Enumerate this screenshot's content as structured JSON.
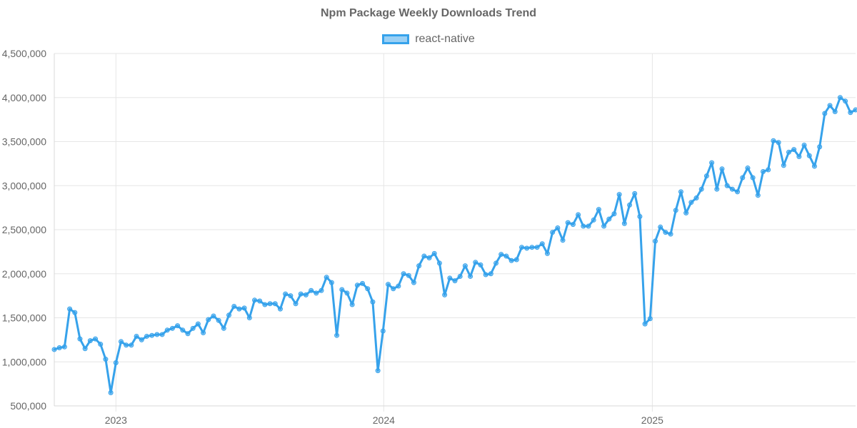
{
  "chart_data": {
    "type": "line",
    "title": "Npm Package Weekly Downloads Trend",
    "xlabel": "",
    "ylabel": "",
    "ylim": [
      500000,
      4500000
    ],
    "xlim": [
      "2022-10-09",
      "2025-10-05"
    ],
    "y_ticks": [
      500000,
      1000000,
      1500000,
      2000000,
      2500000,
      3000000,
      3500000,
      4000000,
      4500000
    ],
    "y_tick_labels": [
      "500,000",
      "1,000,000",
      "1,500,000",
      "2,000,000",
      "2,500,000",
      "3,000,000",
      "3,500,000",
      "4,000,000",
      "4,500,000"
    ],
    "x_ticks": [
      "2023-01-01",
      "2024-01-01",
      "2025-01-01"
    ],
    "x_tick_labels": [
      "2023",
      "2024",
      "2025"
    ],
    "grid": true,
    "legend": "top",
    "color": "#36a2eb",
    "series": [
      {
        "name": "react-native",
        "points": [
          [
            "2022-10-09",
            1140000
          ],
          [
            "2022-10-16",
            1160000
          ],
          [
            "2022-10-23",
            1170000
          ],
          [
            "2022-10-30",
            1600000
          ],
          [
            "2022-11-06",
            1560000
          ],
          [
            "2022-11-13",
            1260000
          ],
          [
            "2022-11-20",
            1150000
          ],
          [
            "2022-11-27",
            1240000
          ],
          [
            "2022-12-04",
            1260000
          ],
          [
            "2022-12-11",
            1200000
          ],
          [
            "2022-12-18",
            1030000
          ],
          [
            "2022-12-25",
            650000
          ],
          [
            "2023-01-01",
            990000
          ],
          [
            "2023-01-08",
            1230000
          ],
          [
            "2023-01-15",
            1190000
          ],
          [
            "2023-01-22",
            1190000
          ],
          [
            "2023-01-29",
            1290000
          ],
          [
            "2023-02-05",
            1250000
          ],
          [
            "2023-02-12",
            1290000
          ],
          [
            "2023-02-19",
            1300000
          ],
          [
            "2023-02-26",
            1310000
          ],
          [
            "2023-03-05",
            1310000
          ],
          [
            "2023-03-12",
            1360000
          ],
          [
            "2023-03-19",
            1380000
          ],
          [
            "2023-03-26",
            1410000
          ],
          [
            "2023-04-02",
            1360000
          ],
          [
            "2023-04-09",
            1320000
          ],
          [
            "2023-04-16",
            1380000
          ],
          [
            "2023-04-23",
            1430000
          ],
          [
            "2023-04-30",
            1330000
          ],
          [
            "2023-05-07",
            1480000
          ],
          [
            "2023-05-14",
            1520000
          ],
          [
            "2023-05-21",
            1470000
          ],
          [
            "2023-05-28",
            1380000
          ],
          [
            "2023-06-04",
            1530000
          ],
          [
            "2023-06-11",
            1630000
          ],
          [
            "2023-06-18",
            1600000
          ],
          [
            "2023-06-25",
            1610000
          ],
          [
            "2023-07-02",
            1500000
          ],
          [
            "2023-07-09",
            1700000
          ],
          [
            "2023-07-16",
            1690000
          ],
          [
            "2023-07-23",
            1650000
          ],
          [
            "2023-07-30",
            1660000
          ],
          [
            "2023-08-06",
            1660000
          ],
          [
            "2023-08-13",
            1600000
          ],
          [
            "2023-08-20",
            1770000
          ],
          [
            "2023-08-27",
            1750000
          ],
          [
            "2023-09-03",
            1660000
          ],
          [
            "2023-09-10",
            1770000
          ],
          [
            "2023-09-17",
            1760000
          ],
          [
            "2023-09-24",
            1810000
          ],
          [
            "2023-10-01",
            1780000
          ],
          [
            "2023-10-08",
            1810000
          ],
          [
            "2023-10-15",
            1960000
          ],
          [
            "2023-10-22",
            1900000
          ],
          [
            "2023-10-29",
            1300000
          ],
          [
            "2023-11-05",
            1820000
          ],
          [
            "2023-11-12",
            1780000
          ],
          [
            "2023-11-19",
            1650000
          ],
          [
            "2023-11-26",
            1870000
          ],
          [
            "2023-12-03",
            1890000
          ],
          [
            "2023-12-10",
            1830000
          ],
          [
            "2023-12-17",
            1680000
          ],
          [
            "2023-12-24",
            900000
          ],
          [
            "2023-12-31",
            1350000
          ],
          [
            "2024-01-07",
            1880000
          ],
          [
            "2024-01-14",
            1830000
          ],
          [
            "2024-01-21",
            1860000
          ],
          [
            "2024-01-28",
            2000000
          ],
          [
            "2024-02-04",
            1980000
          ],
          [
            "2024-02-11",
            1900000
          ],
          [
            "2024-02-18",
            2090000
          ],
          [
            "2024-02-25",
            2200000
          ],
          [
            "2024-03-03",
            2180000
          ],
          [
            "2024-03-10",
            2230000
          ],
          [
            "2024-03-17",
            2120000
          ],
          [
            "2024-03-24",
            1760000
          ],
          [
            "2024-03-31",
            1950000
          ],
          [
            "2024-04-07",
            1920000
          ],
          [
            "2024-04-14",
            1970000
          ],
          [
            "2024-04-21",
            2090000
          ],
          [
            "2024-04-28",
            1970000
          ],
          [
            "2024-05-05",
            2130000
          ],
          [
            "2024-05-12",
            2100000
          ],
          [
            "2024-05-19",
            1990000
          ],
          [
            "2024-05-26",
            2000000
          ],
          [
            "2024-06-02",
            2120000
          ],
          [
            "2024-06-09",
            2220000
          ],
          [
            "2024-06-16",
            2200000
          ],
          [
            "2024-06-23",
            2150000
          ],
          [
            "2024-06-30",
            2160000
          ],
          [
            "2024-07-07",
            2300000
          ],
          [
            "2024-07-14",
            2290000
          ],
          [
            "2024-07-21",
            2300000
          ],
          [
            "2024-07-28",
            2300000
          ],
          [
            "2024-08-04",
            2340000
          ],
          [
            "2024-08-11",
            2230000
          ],
          [
            "2024-08-18",
            2470000
          ],
          [
            "2024-08-25",
            2520000
          ],
          [
            "2024-09-01",
            2380000
          ],
          [
            "2024-09-08",
            2580000
          ],
          [
            "2024-09-15",
            2560000
          ],
          [
            "2024-09-22",
            2670000
          ],
          [
            "2024-09-29",
            2540000
          ],
          [
            "2024-10-06",
            2540000
          ],
          [
            "2024-10-13",
            2610000
          ],
          [
            "2024-10-20",
            2730000
          ],
          [
            "2024-10-27",
            2540000
          ],
          [
            "2024-11-03",
            2620000
          ],
          [
            "2024-11-10",
            2680000
          ],
          [
            "2024-11-17",
            2900000
          ],
          [
            "2024-11-24",
            2570000
          ],
          [
            "2024-12-01",
            2780000
          ],
          [
            "2024-12-08",
            2910000
          ],
          [
            "2024-12-15",
            2650000
          ],
          [
            "2024-12-22",
            1430000
          ],
          [
            "2024-12-29",
            1490000
          ],
          [
            "2025-01-05",
            2370000
          ],
          [
            "2025-01-12",
            2530000
          ],
          [
            "2025-01-19",
            2470000
          ],
          [
            "2025-01-26",
            2450000
          ],
          [
            "2025-02-02",
            2720000
          ],
          [
            "2025-02-09",
            2930000
          ],
          [
            "2025-02-16",
            2690000
          ],
          [
            "2025-02-23",
            2810000
          ],
          [
            "2025-03-02",
            2860000
          ],
          [
            "2025-03-09",
            2960000
          ],
          [
            "2025-03-16",
            3110000
          ],
          [
            "2025-03-23",
            3260000
          ],
          [
            "2025-03-30",
            2960000
          ],
          [
            "2025-04-06",
            3190000
          ],
          [
            "2025-04-13",
            3000000
          ],
          [
            "2025-04-20",
            2960000
          ],
          [
            "2025-04-27",
            2930000
          ],
          [
            "2025-05-04",
            3090000
          ],
          [
            "2025-05-11",
            3200000
          ],
          [
            "2025-05-18",
            3090000
          ],
          [
            "2025-05-25",
            2890000
          ],
          [
            "2025-06-01",
            3160000
          ],
          [
            "2025-06-08",
            3180000
          ],
          [
            "2025-06-15",
            3510000
          ],
          [
            "2025-06-22",
            3490000
          ],
          [
            "2025-06-29",
            3230000
          ],
          [
            "2025-07-06",
            3380000
          ],
          [
            "2025-07-13",
            3410000
          ],
          [
            "2025-07-20",
            3330000
          ],
          [
            "2025-07-27",
            3460000
          ],
          [
            "2025-08-03",
            3340000
          ],
          [
            "2025-08-10",
            3220000
          ],
          [
            "2025-08-17",
            3440000
          ],
          [
            "2025-08-24",
            3820000
          ],
          [
            "2025-08-31",
            3910000
          ],
          [
            "2025-09-07",
            3840000
          ],
          [
            "2025-09-14",
            4000000
          ],
          [
            "2025-09-21",
            3960000
          ],
          [
            "2025-09-28",
            3830000
          ],
          [
            "2025-10-05",
            3860000
          ]
        ]
      }
    ]
  }
}
